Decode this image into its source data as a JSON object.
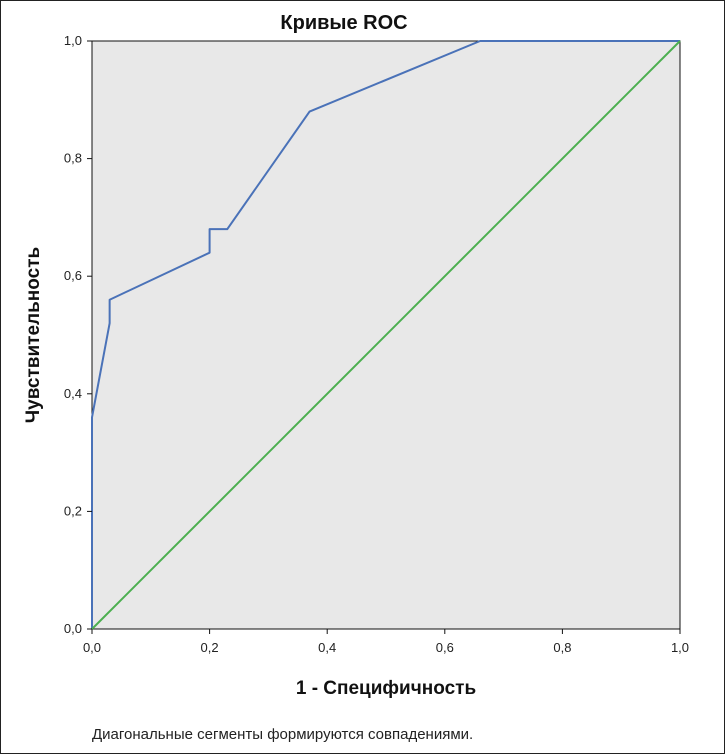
{
  "chart_data": {
    "type": "line",
    "title": "Кривые ROC",
    "xlabel": "1 - Специфичность",
    "ylabel": "Чувствительность",
    "xlim": [
      0,
      1
    ],
    "ylim": [
      0,
      1
    ],
    "x_ticks": [
      "0,0",
      "0,2",
      "0,4",
      "0,6",
      "0,8",
      "1,0"
    ],
    "y_ticks": [
      "0,0",
      "0,2",
      "0,4",
      "0,6",
      "0,8",
      "1,0"
    ],
    "grid": false,
    "plot_background": "#e8e8e8",
    "series": [
      {
        "color": "#4a72b8",
        "points": [
          [
            0.0,
            0.0
          ],
          [
            0.0,
            0.36
          ],
          [
            0.03,
            0.52
          ],
          [
            0.03,
            0.56
          ],
          [
            0.2,
            0.64
          ],
          [
            0.2,
            0.68
          ],
          [
            0.23,
            0.68
          ],
          [
            0.37,
            0.88
          ],
          [
            0.66,
            1.0
          ],
          [
            1.0,
            1.0
          ]
        ]
      },
      {
        "color": "#4caf50",
        "points": [
          [
            0.0,
            0.0
          ],
          [
            1.0,
            1.0
          ]
        ]
      }
    ],
    "footnote": "Диагональные сегменты формируются совпадениями."
  }
}
